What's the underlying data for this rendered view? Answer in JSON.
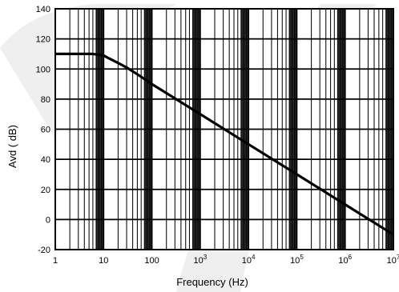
{
  "chart_data": {
    "type": "line",
    "title": "",
    "xlabel": "Frequency  (Hz)",
    "ylabel": "Avd ( dB)",
    "xscale": "log",
    "xlim": [
      1,
      10000000
    ],
    "ylim": [
      -20,
      140
    ],
    "grid": true,
    "x_tick_labels": [
      {
        "value": 1,
        "base": "1",
        "exp": ""
      },
      {
        "value": 10,
        "base": "10",
        "exp": ""
      },
      {
        "value": 100,
        "base": "100",
        "exp": ""
      },
      {
        "value": 1000,
        "base": "10",
        "exp": "3"
      },
      {
        "value": 10000,
        "base": "10",
        "exp": "4"
      },
      {
        "value": 100000,
        "base": "10",
        "exp": "5"
      },
      {
        "value": 1000000,
        "base": "10",
        "exp": "6"
      },
      {
        "value": 10000000,
        "base": "10",
        "exp": "7"
      }
    ],
    "y_ticks": [
      -20,
      0,
      20,
      40,
      60,
      80,
      100,
      120,
      140
    ],
    "y_tick_labels": [
      "-20",
      "0",
      "20",
      "40",
      "60",
      "80",
      "100",
      "120",
      "140"
    ],
    "series": [
      {
        "color": "#000000",
        "x": [
          1,
          3,
          6,
          8,
          10,
          13,
          20,
          30,
          50,
          100,
          1000,
          10000,
          100000,
          1000000,
          10000000
        ],
        "y": [
          110,
          110,
          110,
          109.5,
          109,
          107,
          104,
          101,
          96.5,
          90,
          70,
          50,
          30,
          10,
          -10
        ]
      }
    ]
  }
}
